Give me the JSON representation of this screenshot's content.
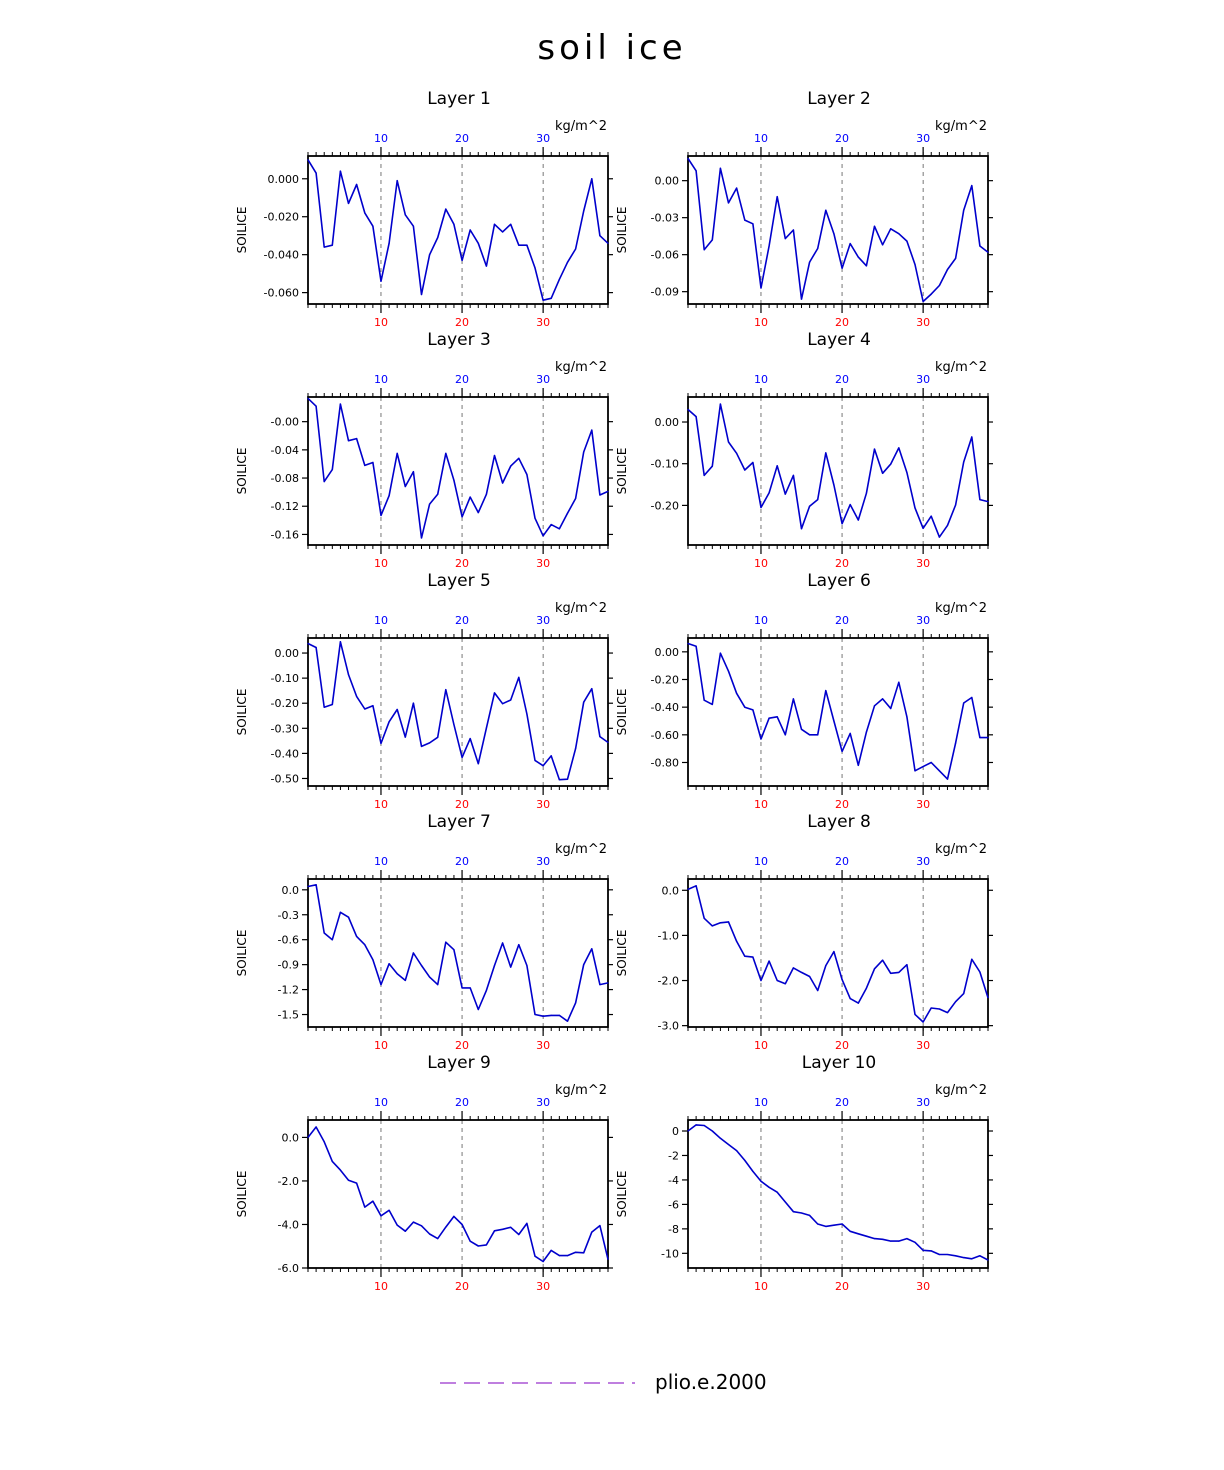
{
  "title": "soil ice",
  "unit_label": "kg/m^2",
  "legend": {
    "label": "plio.e.2000",
    "color": "#9933cc"
  },
  "colors": {
    "line": "#0000cc",
    "top_ticks": "#0000ff",
    "bottom_ticks": "#ff0000"
  },
  "chart_data": [
    {
      "type": "line",
      "title": "Layer 1",
      "ylabel": "SOILICE",
      "xlim": [
        1,
        38
      ],
      "x_ticks": [
        10,
        20,
        30
      ],
      "ylim": [
        -0.066,
        0.012
      ],
      "y_ticks": [
        0,
        -0.02,
        -0.04,
        -0.06
      ],
      "y_tick_labels": [
        "0.000",
        "-0.020",
        "-0.040",
        "-0.060"
      ],
      "series": [
        {
          "values": [
            0.01,
            0.003,
            -0.036,
            -0.035,
            0.004,
            -0.013,
            -0.003,
            -0.018,
            -0.025,
            -0.054,
            -0.034,
            -0.001,
            -0.019,
            -0.025,
            -0.061,
            -0.04,
            -0.031,
            -0.016,
            -0.024,
            -0.043,
            -0.027,
            -0.034,
            -0.046,
            -0.024,
            -0.028,
            -0.024,
            -0.035,
            -0.035,
            -0.047,
            -0.064,
            -0.063,
            -0.053,
            -0.044,
            -0.037,
            -0.017,
            0.0,
            -0.03,
            -0.034
          ]
        }
      ]
    },
    {
      "type": "line",
      "title": "Layer 2",
      "ylabel": "SOILICE",
      "xlim": [
        1,
        38
      ],
      "x_ticks": [
        10,
        20,
        30
      ],
      "ylim": [
        -0.1,
        0.02
      ],
      "y_ticks": [
        0,
        -0.03,
        -0.06,
        -0.09
      ],
      "y_tick_labels": [
        "0.00",
        "-0.03",
        "-0.06",
        "-0.09"
      ],
      "series": [
        {
          "values": [
            0.018,
            0.008,
            -0.056,
            -0.048,
            0.01,
            -0.018,
            -0.006,
            -0.032,
            -0.035,
            -0.087,
            -0.053,
            -0.013,
            -0.047,
            -0.04,
            -0.096,
            -0.066,
            -0.055,
            -0.024,
            -0.043,
            -0.071,
            -0.051,
            -0.062,
            -0.069,
            -0.037,
            -0.052,
            -0.039,
            -0.043,
            -0.049,
            -0.068,
            -0.098,
            -0.092,
            -0.085,
            -0.072,
            -0.063,
            -0.024,
            -0.004,
            -0.053,
            -0.058
          ]
        }
      ]
    },
    {
      "type": "line",
      "title": "Layer 3",
      "ylabel": "SOILICE",
      "xlim": [
        1,
        38
      ],
      "x_ticks": [
        10,
        20,
        30
      ],
      "ylim": [
        -0.175,
        0.035
      ],
      "y_ticks": [
        0,
        -0.04,
        -0.08,
        -0.12,
        -0.16
      ],
      "y_tick_labels": [
        "-0.00",
        "-0.04",
        "-0.08",
        "-0.12",
        "-0.16"
      ],
      "series": [
        {
          "values": [
            0.033,
            0.022,
            -0.085,
            -0.068,
            0.025,
            -0.027,
            -0.024,
            -0.062,
            -0.058,
            -0.133,
            -0.105,
            -0.045,
            -0.092,
            -0.071,
            -0.165,
            -0.117,
            -0.103,
            -0.045,
            -0.083,
            -0.135,
            -0.107,
            -0.129,
            -0.103,
            -0.048,
            -0.087,
            -0.063,
            -0.052,
            -0.075,
            -0.137,
            -0.162,
            -0.146,
            -0.152,
            -0.13,
            -0.109,
            -0.043,
            -0.012,
            -0.104,
            -0.099
          ]
        }
      ]
    },
    {
      "type": "line",
      "title": "Layer 4",
      "ylabel": "SOILICE",
      "xlim": [
        1,
        38
      ],
      "x_ticks": [
        10,
        20,
        30
      ],
      "ylim": [
        -0.295,
        0.06
      ],
      "y_ticks": [
        0,
        -0.1,
        -0.2
      ],
      "y_tick_labels": [
        "0.00",
        "-0.10",
        "-0.20"
      ],
      "series": [
        {
          "values": [
            0.03,
            0.013,
            -0.128,
            -0.106,
            0.043,
            -0.048,
            -0.075,
            -0.115,
            -0.097,
            -0.205,
            -0.17,
            -0.105,
            -0.173,
            -0.128,
            -0.256,
            -0.202,
            -0.186,
            -0.074,
            -0.151,
            -0.244,
            -0.198,
            -0.235,
            -0.171,
            -0.065,
            -0.123,
            -0.101,
            -0.062,
            -0.121,
            -0.206,
            -0.255,
            -0.226,
            -0.276,
            -0.248,
            -0.199,
            -0.096,
            -0.036,
            -0.186,
            -0.191
          ]
        }
      ]
    },
    {
      "type": "line",
      "title": "Layer 5",
      "ylabel": "SOILICE",
      "xlim": [
        1,
        38
      ],
      "x_ticks": [
        10,
        20,
        30
      ],
      "ylim": [
        -0.53,
        0.06
      ],
      "y_ticks": [
        0,
        -0.1,
        -0.2,
        -0.3,
        -0.4,
        -0.5
      ],
      "y_tick_labels": [
        "0.00",
        "-0.10",
        "-0.20",
        "-0.30",
        "-0.40",
        "-0.50"
      ],
      "series": [
        {
          "values": [
            0.038,
            0.022,
            -0.216,
            -0.205,
            0.045,
            -0.086,
            -0.173,
            -0.223,
            -0.21,
            -0.36,
            -0.274,
            -0.225,
            -0.335,
            -0.2,
            -0.372,
            -0.358,
            -0.336,
            -0.146,
            -0.285,
            -0.416,
            -0.341,
            -0.441,
            -0.299,
            -0.159,
            -0.202,
            -0.187,
            -0.097,
            -0.243,
            -0.428,
            -0.449,
            -0.41,
            -0.505,
            -0.503,
            -0.381,
            -0.196,
            -0.142,
            -0.333,
            -0.356
          ]
        }
      ]
    },
    {
      "type": "line",
      "title": "Layer 6",
      "ylabel": "SOILICE",
      "xlim": [
        1,
        38
      ],
      "x_ticks": [
        10,
        20,
        30
      ],
      "ylim": [
        -0.97,
        0.1
      ],
      "y_ticks": [
        0,
        -0.2,
        -0.4,
        -0.6,
        -0.8
      ],
      "y_tick_labels": [
        "0.00",
        "-0.20",
        "-0.40",
        "-0.60",
        "-0.80"
      ],
      "series": [
        {
          "values": [
            0.06,
            0.04,
            -0.35,
            -0.38,
            -0.01,
            -0.14,
            -0.3,
            -0.4,
            -0.42,
            -0.63,
            -0.48,
            -0.47,
            -0.6,
            -0.34,
            -0.56,
            -0.6,
            -0.6,
            -0.28,
            -0.5,
            -0.72,
            -0.59,
            -0.82,
            -0.58,
            -0.39,
            -0.34,
            -0.41,
            -0.22,
            -0.47,
            -0.86,
            -0.83,
            -0.8,
            -0.86,
            -0.92,
            -0.66,
            -0.37,
            -0.33,
            -0.62,
            -0.62
          ]
        }
      ]
    },
    {
      "type": "line",
      "title": "Layer 7",
      "ylabel": "SOILICE",
      "xlim": [
        1,
        38
      ],
      "x_ticks": [
        10,
        20,
        30
      ],
      "ylim": [
        -1.65,
        0.13
      ],
      "y_ticks": [
        0,
        -0.3,
        -0.6,
        -0.9,
        -1.2,
        -1.5
      ],
      "y_tick_labels": [
        "0.0",
        "-0.3",
        "-0.6",
        "-0.9",
        "-1.2",
        "-1.5"
      ],
      "series": [
        {
          "values": [
            0.04,
            0.06,
            -0.52,
            -0.6,
            -0.27,
            -0.33,
            -0.56,
            -0.66,
            -0.84,
            -1.14,
            -0.89,
            -1.01,
            -1.09,
            -0.76,
            -0.91,
            -1.05,
            -1.14,
            -0.63,
            -0.72,
            -1.18,
            -1.18,
            -1.44,
            -1.21,
            -0.91,
            -0.64,
            -0.93,
            -0.66,
            -0.91,
            -1.5,
            -1.52,
            -1.51,
            -1.51,
            -1.58,
            -1.36,
            -0.9,
            -0.71,
            -1.14,
            -1.12
          ]
        }
      ]
    },
    {
      "type": "line",
      "title": "Layer 8",
      "ylabel": "SOILICE",
      "xlim": [
        1,
        38
      ],
      "x_ticks": [
        10,
        20,
        30
      ],
      "ylim": [
        -3.03,
        0.25
      ],
      "y_ticks": [
        0,
        -1,
        -2,
        -3
      ],
      "y_tick_labels": [
        "0.0",
        "-1.0",
        "-2.0",
        "-3.0"
      ],
      "series": [
        {
          "values": [
            0.02,
            0.1,
            -0.62,
            -0.79,
            -0.72,
            -0.7,
            -1.13,
            -1.46,
            -1.48,
            -2.0,
            -1.57,
            -2.0,
            -2.07,
            -1.72,
            -1.82,
            -1.91,
            -2.22,
            -1.67,
            -1.36,
            -1.98,
            -2.4,
            -2.5,
            -2.17,
            -1.74,
            -1.55,
            -1.84,
            -1.82,
            -1.65,
            -2.75,
            -2.92,
            -2.61,
            -2.63,
            -2.71,
            -2.47,
            -2.29,
            -1.53,
            -1.81,
            -2.38
          ]
        }
      ]
    },
    {
      "type": "line",
      "title": "Layer 9",
      "ylabel": "SOILICE",
      "xlim": [
        1,
        38
      ],
      "x_ticks": [
        10,
        20,
        30
      ],
      "ylim": [
        -6.0,
        0.8
      ],
      "y_ticks": [
        0,
        -2,
        -4,
        -6
      ],
      "y_tick_labels": [
        "0.0",
        "-2.0",
        "-4.0",
        "-6.0"
      ],
      "series": [
        {
          "values": [
            0.0,
            0.48,
            -0.2,
            -1.1,
            -1.5,
            -1.97,
            -2.1,
            -3.2,
            -2.93,
            -3.6,
            -3.35,
            -4.03,
            -4.31,
            -3.89,
            -4.06,
            -4.44,
            -4.65,
            -4.12,
            -3.63,
            -4.0,
            -4.77,
            -4.99,
            -4.94,
            -4.29,
            -4.22,
            -4.13,
            -4.46,
            -3.95,
            -5.46,
            -5.7,
            -5.19,
            -5.43,
            -5.43,
            -5.28,
            -5.3,
            -4.35,
            -4.05,
            -5.6
          ]
        }
      ]
    },
    {
      "type": "line",
      "title": "Layer 10",
      "ylabel": "SOILICE",
      "xlim": [
        1,
        38
      ],
      "x_ticks": [
        10,
        20,
        30
      ],
      "ylim": [
        -11.2,
        0.9
      ],
      "y_ticks": [
        0,
        -2,
        -4,
        -6,
        -8,
        -10
      ],
      "y_tick_labels": [
        "0",
        "-2",
        "-4",
        "-6",
        "-8",
        "-10"
      ],
      "series": [
        {
          "values": [
            0.0,
            0.5,
            0.45,
            0.0,
            -0.6,
            -1.1,
            -1.6,
            -2.4,
            -3.3,
            -4.1,
            -4.6,
            -5.0,
            -5.8,
            -6.6,
            -6.7,
            -6.9,
            -7.6,
            -7.8,
            -7.7,
            -7.6,
            -8.2,
            -8.4,
            -8.6,
            -8.8,
            -8.85,
            -9.0,
            -9.0,
            -8.8,
            -9.1,
            -9.75,
            -9.8,
            -10.1,
            -10.1,
            -10.2,
            -10.35,
            -10.45,
            -10.2,
            -10.55
          ]
        }
      ]
    }
  ]
}
